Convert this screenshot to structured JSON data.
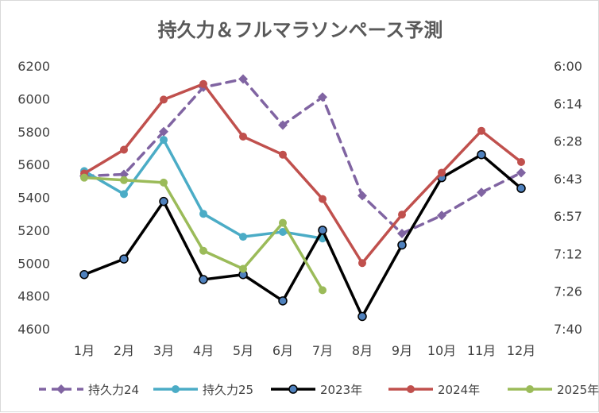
{
  "chart_data": {
    "type": "line",
    "title": "持久力＆フルマラソンペース予測",
    "categories": [
      "1月",
      "2月",
      "3月",
      "4月",
      "5月",
      "6月",
      "7月",
      "8月",
      "9月",
      "10月",
      "11月",
      "12月"
    ],
    "y_left": {
      "min": 4600,
      "max": 6200,
      "ticks": [
        6200,
        6000,
        5800,
        5600,
        5400,
        5200,
        5000,
        4800,
        4600
      ]
    },
    "y_right": {
      "ticks": [
        "6:00",
        "6:14",
        "6:28",
        "6:43",
        "6:57",
        "7:12",
        "7:26",
        "7:40"
      ]
    },
    "grid": false,
    "legend_position": "bottom",
    "series": [
      {
        "name": "持久力24",
        "color": "#8064a2",
        "dashed": true,
        "marker": "diamond",
        "values": [
          5530,
          5540,
          5800,
          6070,
          6120,
          5840,
          6010,
          5410,
          5180,
          5290,
          5430,
          5550
        ]
      },
      {
        "name": "持久力25",
        "color": "#4bacc6",
        "dashed": false,
        "marker": "circle",
        "values": [
          5560,
          5420,
          5750,
          5300,
          5160,
          5190,
          5150,
          null,
          null,
          null,
          null,
          null
        ]
      },
      {
        "name": "2023年",
        "color": "#000000",
        "dashed": false,
        "marker": "circle-blue",
        "values": [
          4930,
          5025,
          5375,
          4900,
          4930,
          4770,
          5200,
          4675,
          5110,
          5520,
          5660,
          5455
        ]
      },
      {
        "name": "2024年",
        "color": "#c0504d",
        "dashed": false,
        "marker": "circle",
        "values": [
          5545,
          5690,
          5995,
          6090,
          5770,
          5660,
          5390,
          5000,
          5295,
          5550,
          5805,
          5615
        ]
      },
      {
        "name": "2025年",
        "color": "#9bbb59",
        "dashed": false,
        "marker": "circle",
        "values": [
          5520,
          5505,
          5490,
          5075,
          4965,
          5245,
          4835,
          null,
          null,
          null,
          null,
          null
        ]
      }
    ]
  }
}
